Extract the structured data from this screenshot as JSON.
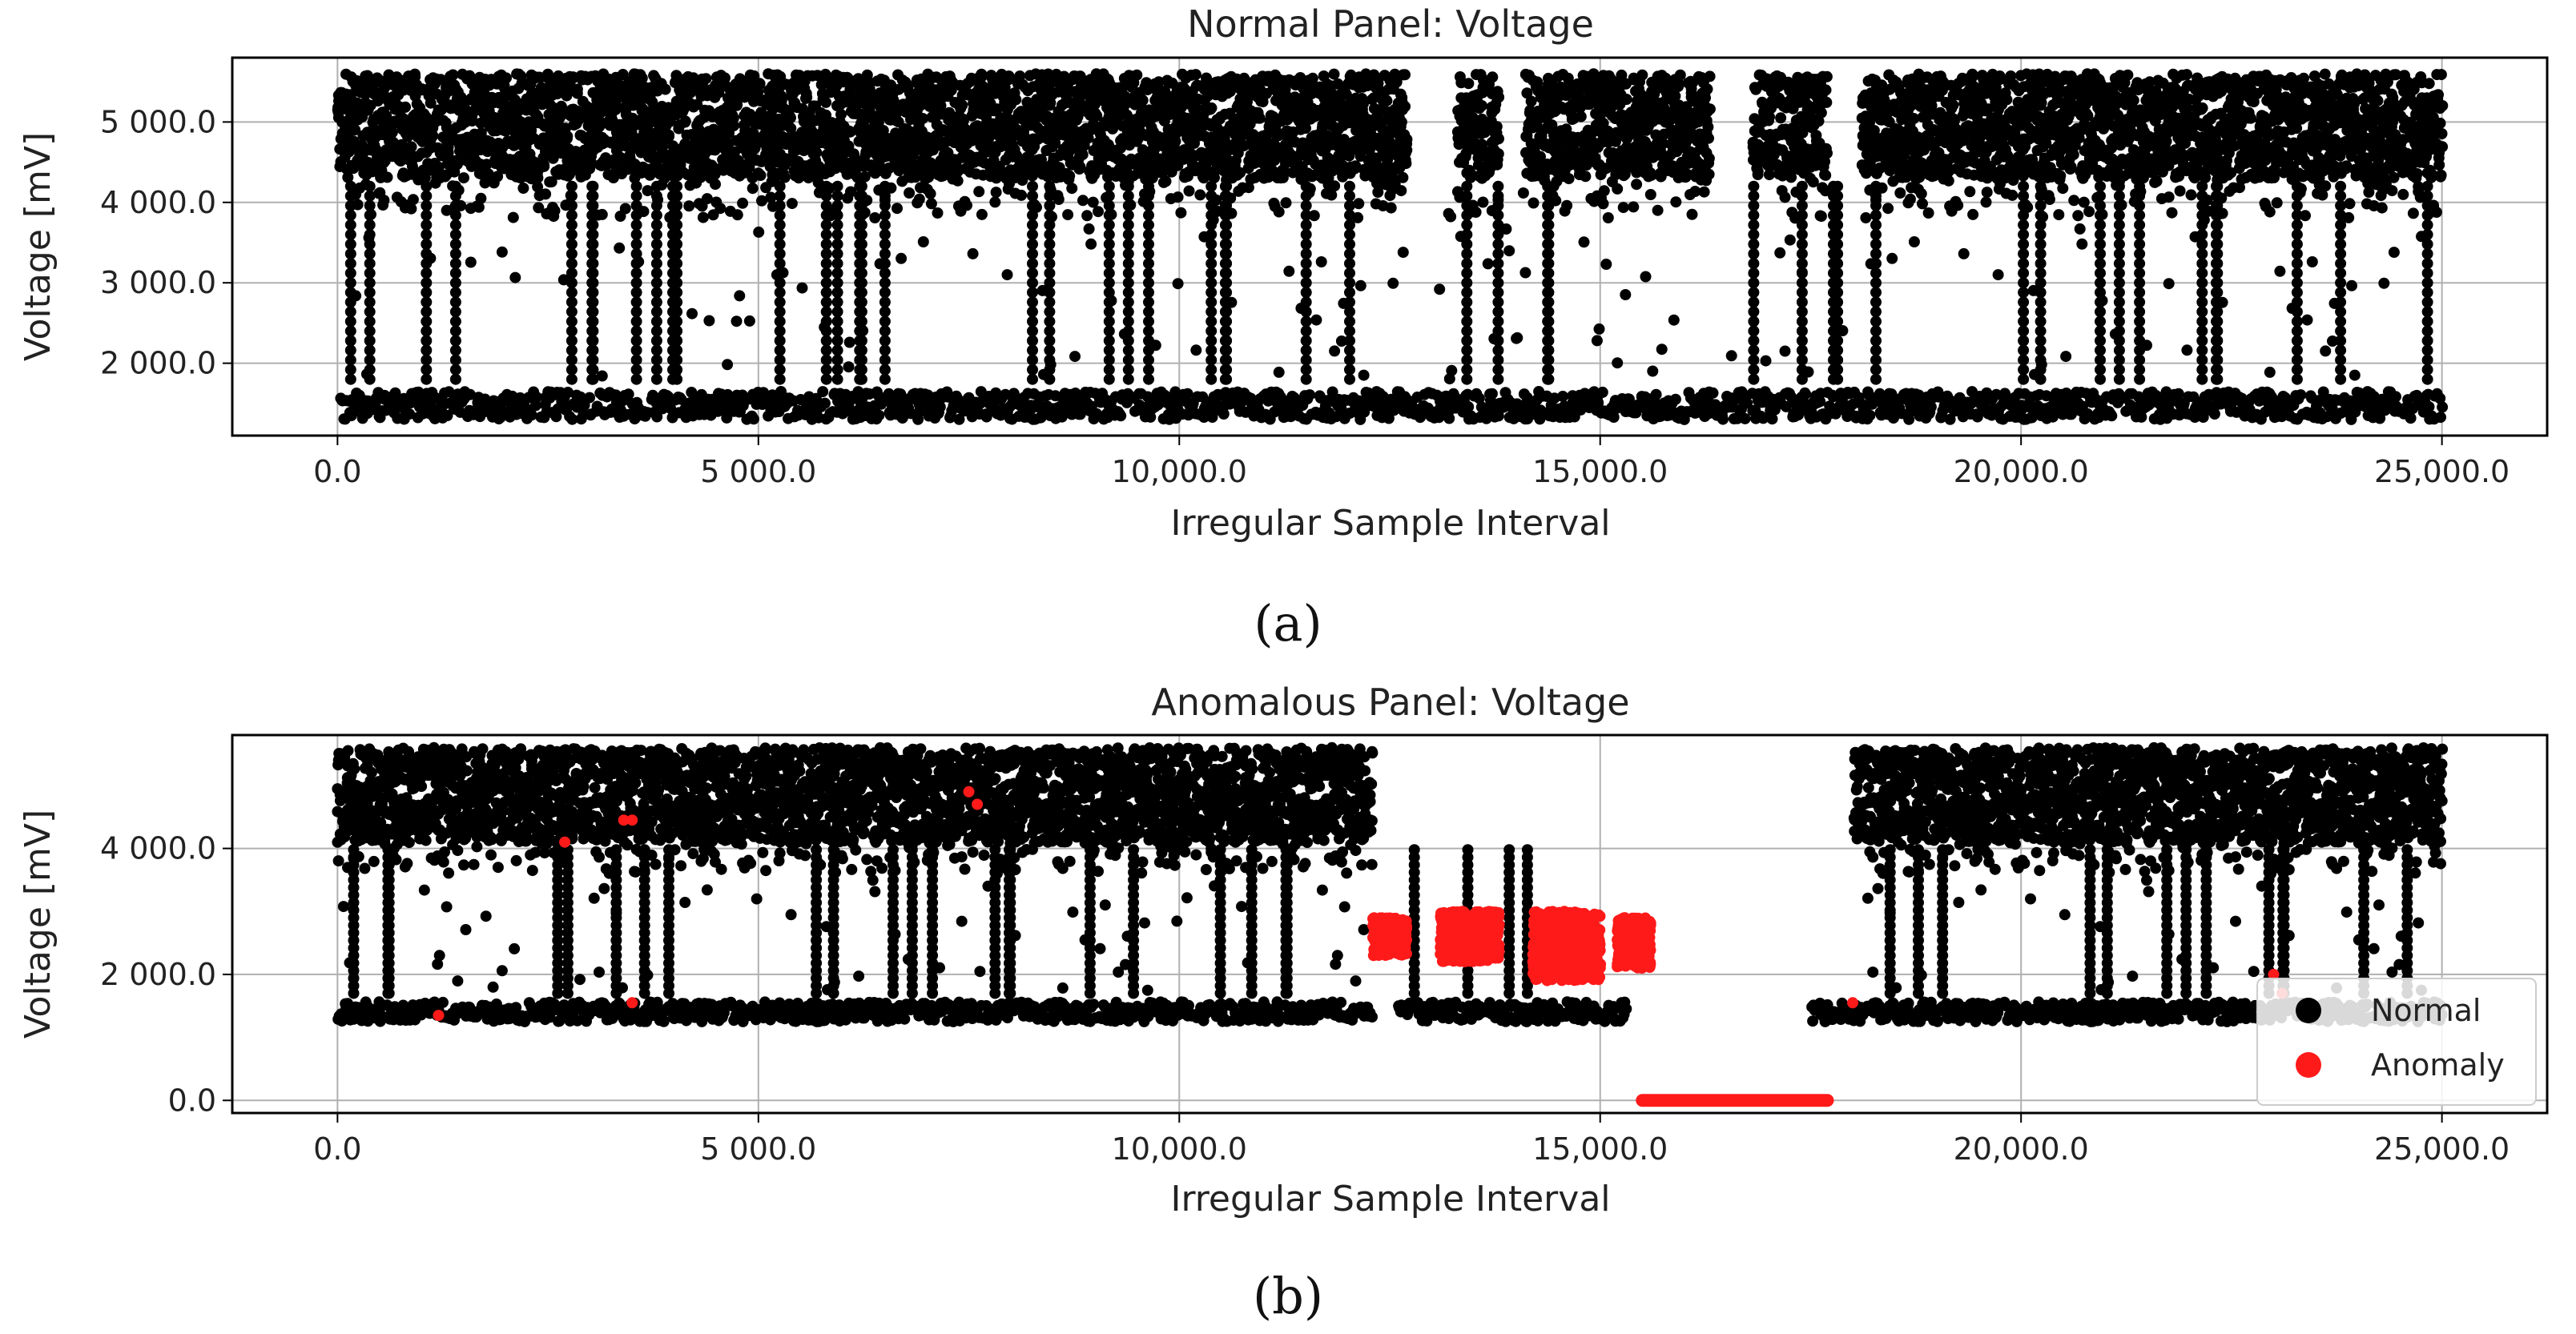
{
  "colors": {
    "normal": "#000000",
    "anomaly": "#ff1a1a",
    "grid": "#b0b0b0",
    "axis": "#000000",
    "legend_border": "#cccccc"
  },
  "chart_data": [
    {
      "type": "scatter",
      "panel_label": "(a)",
      "title": "Normal Panel: Voltage",
      "xlabel": "Irregular Sample Interval",
      "ylabel": "Voltage [mV]",
      "xlim": [
        -1250,
        26250
      ],
      "ylim": [
        1100,
        5800
      ],
      "grid": true,
      "xticks": [
        0,
        5000,
        10000,
        15000,
        20000,
        25000
      ],
      "xtick_labels": [
        "0.0",
        "5 000.0",
        "10,000.0",
        "15,000.0",
        "20,000.0",
        "25,000.0"
      ],
      "yticks": [
        2000,
        3000,
        4000,
        5000
      ],
      "ytick_labels": [
        "2 000.0",
        "3 000.0",
        "4 000.0",
        "5 000.0"
      ],
      "series": [
        {
          "name": "Normal",
          "color": "#000000",
          "pattern": {
            "x_range": [
              0,
              25000
            ],
            "high_band": [
              4300,
              5600
            ],
            "low_band": [
              1300,
              1800
            ],
            "gaps": [
              [
                12700,
                13300
              ],
              [
                13800,
                14100
              ],
              [
                16300,
                16800
              ],
              [
                17700,
                18100
              ]
            ]
          }
        }
      ]
    },
    {
      "type": "scatter",
      "panel_label": "(b)",
      "title": "Anomalous Panel: Voltage",
      "xlabel": "Irregular Sample Interval",
      "ylabel": "Voltage [mV]",
      "xlim": [
        -1250,
        26250
      ],
      "ylim": [
        -200,
        5800
      ],
      "grid": true,
      "xticks": [
        0,
        5000,
        10000,
        15000,
        20000,
        25000
      ],
      "xtick_labels": [
        "0.0",
        "5 000.0",
        "10,000.0",
        "15,000.0",
        "20,000.0",
        "25,000.0"
      ],
      "yticks": [
        0,
        2000,
        4000
      ],
      "ytick_labels": [
        "0.0",
        "2 000.0",
        "4 000.0"
      ],
      "legend": {
        "location": "lower-right",
        "entries": [
          "Normal",
          "Anomaly"
        ]
      },
      "series": [
        {
          "name": "Normal",
          "color": "#000000",
          "pattern": {
            "x_range": [
              0,
              25000
            ],
            "high_band": [
              4100,
              5600
            ],
            "low_band": [
              1250,
              1700
            ],
            "dropout": [
              12300,
              18000
            ],
            "low_only_segments": [
              [
                12600,
                15300
              ],
              [
                17500,
                18000
              ]
            ]
          }
        },
        {
          "name": "Anomaly",
          "color": "#ff1a1a",
          "clusters": [
            {
              "x_range": [
                12300,
                12700
              ],
              "y_range": [
                2300,
                2900
              ]
            },
            {
              "x_range": [
                13100,
                13800
              ],
              "y_range": [
                2200,
                3000
              ]
            },
            {
              "x_range": [
                14200,
                15000
              ],
              "y_range": [
                1900,
                3000
              ]
            },
            {
              "x_range": [
                15200,
                15600
              ],
              "y_range": [
                2100,
                2900
              ]
            }
          ],
          "flat_segment": {
            "x_range": [
              15500,
              17700
            ],
            "y": 0
          },
          "sparse_points": [
            [
              3400,
              4450
            ],
            [
              3500,
              4450
            ],
            [
              7500,
              4900
            ],
            [
              7600,
              4700
            ],
            [
              1200,
              1350
            ],
            [
              3500,
              1550
            ],
            [
              18000,
              1550
            ],
            [
              23000,
              2000
            ],
            [
              23100,
              1700
            ],
            [
              2700,
              4100
            ]
          ]
        }
      ]
    }
  ],
  "legend": {
    "normal_label": "Normal",
    "anomaly_label": "Anomaly"
  }
}
